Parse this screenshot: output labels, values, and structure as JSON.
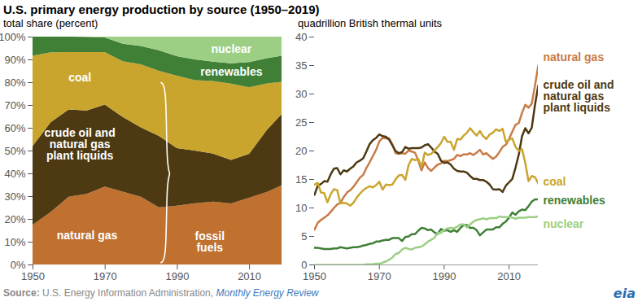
{
  "title": "U.S. primary energy production by source (1950–2019)",
  "source": {
    "prefix": "Source:",
    "text": "U.S. Energy Information Administration,",
    "link": "Monthly Energy Review"
  },
  "logo": "eia",
  "chart_data": [
    {
      "type": "area",
      "stacked": true,
      "subtitle": "total share (percent)",
      "x": [
        1950,
        1955,
        1960,
        1965,
        1970,
        1975,
        1980,
        1985,
        1990,
        1995,
        2000,
        2005,
        2010,
        2015,
        2019
      ],
      "xlim": [
        1950,
        2019
      ],
      "xticks": [
        1950,
        1970,
        1990,
        2010
      ],
      "ylim": [
        0,
        100
      ],
      "yticks": [
        {
          "value": 0,
          "label": "0%"
        },
        {
          "value": 10,
          "label": "10%"
        },
        {
          "value": 20,
          "label": "20%"
        },
        {
          "value": 30,
          "label": "30%"
        },
        {
          "value": 40,
          "label": "40%"
        },
        {
          "value": 50,
          "label": "50%"
        },
        {
          "value": 60,
          "label": "60%"
        },
        {
          "value": 70,
          "label": "70%"
        },
        {
          "value": 80,
          "label": "80%"
        },
        {
          "value": 90,
          "label": "90%"
        },
        {
          "value": 100,
          "label": "100%"
        }
      ],
      "grid": false,
      "series": [
        {
          "name": "natural gas",
          "color": "#c0702f",
          "values": [
            17.4,
            23.0,
            29.7,
            31.0,
            34.2,
            32.0,
            29.7,
            25.1,
            25.8,
            26.9,
            27.6,
            26.8,
            29.3,
            31.9,
            34.7
          ]
        },
        {
          "name": "crude oil and\nnatural gas\nplant liquids",
          "color": "#4d3a12",
          "values": [
            34.6,
            39.4,
            38.3,
            36.6,
            36.0,
            32.7,
            30.5,
            31.3,
            25.3,
            23.1,
            21.1,
            19.1,
            19.3,
            27.3,
            31.3
          ]
        },
        {
          "name": "coal",
          "color": "#c9a52d",
          "values": [
            39.6,
            30.7,
            25.2,
            25.6,
            23.0,
            24.5,
            27.7,
            28.6,
            31.8,
            30.9,
            31.8,
            33.5,
            29.2,
            20.3,
            14.2
          ]
        },
        {
          "name": "renewables",
          "color": "#3f7f36",
          "values": [
            8.4,
            6.9,
            6.8,
            6.7,
            6.4,
            7.7,
            8.0,
            9.0,
            8.5,
            9.1,
            8.5,
            8.9,
            11.0,
            11.0,
            11.4
          ]
        },
        {
          "name": "nuclear",
          "color": "#9ccf83",
          "values": [
            0,
            0,
            0,
            0.1,
            0.4,
            3.1,
            4.1,
            6.0,
            8.6,
            10.0,
            11.0,
            11.7,
            11.2,
            9.5,
            8.4
          ]
        }
      ],
      "annotations": [
        {
          "text": "fossil\nfuels"
        }
      ]
    },
    {
      "type": "line",
      "subtitle": "quadrillion British thermal units",
      "x": [
        1950,
        1951,
        1952,
        1953,
        1954,
        1955,
        1956,
        1957,
        1958,
        1959,
        1960,
        1961,
        1962,
        1963,
        1964,
        1965,
        1966,
        1967,
        1968,
        1969,
        1970,
        1971,
        1972,
        1973,
        1974,
        1975,
        1976,
        1977,
        1978,
        1979,
        1980,
        1981,
        1982,
        1983,
        1984,
        1985,
        1986,
        1987,
        1988,
        1989,
        1990,
        1991,
        1992,
        1993,
        1994,
        1995,
        1996,
        1997,
        1998,
        1999,
        2000,
        2001,
        2002,
        2003,
        2004,
        2005,
        2006,
        2007,
        2008,
        2009,
        2010,
        2011,
        2012,
        2013,
        2014,
        2015,
        2016,
        2017,
        2018,
        2019
      ],
      "xlim": [
        1950,
        2019
      ],
      "xticks": [
        1950,
        1970,
        1990,
        2010
      ],
      "ylim": [
        0,
        40
      ],
      "yticks": [
        0,
        5,
        10,
        15,
        20,
        25,
        30,
        35,
        40
      ],
      "grid": false,
      "series": [
        {
          "name": "natural gas",
          "color": "#c87b45",
          "values": [
            6.2,
            7.4,
            7.9,
            8.3,
            8.7,
            9.3,
            10.0,
            10.6,
            10.9,
            11.9,
            12.7,
            13.1,
            13.7,
            14.5,
            15.3,
            15.8,
            17.0,
            18.0,
            19.1,
            20.2,
            21.7,
            22.3,
            22.2,
            22.2,
            21.2,
            19.6,
            19.5,
            19.6,
            19.5,
            20.1,
            19.9,
            19.7,
            18.3,
            16.6,
            18.0,
            17.0,
            16.5,
            17.1,
            17.6,
            17.8,
            18.3,
            18.2,
            18.4,
            18.6,
            19.3,
            19.1,
            19.4,
            19.4,
            19.6,
            19.3,
            19.7,
            20.2,
            19.4,
            19.6,
            19.1,
            18.6,
            19.0,
            19.8,
            20.7,
            21.1,
            22.1,
            23.4,
            24.6,
            24.9,
            26.7,
            28.1,
            27.6,
            28.3,
            31.5,
            35.0
          ]
        },
        {
          "name": "crude oil and\nnatural gas\nplant liquids",
          "color": "#4d3a12",
          "values": [
            12.3,
            13.9,
            14.2,
            14.7,
            14.6,
            15.9,
            16.9,
            17.0,
            15.9,
            16.6,
            16.4,
            16.9,
            17.3,
            18.0,
            18.3,
            18.7,
            19.9,
            21.2,
            21.9,
            22.3,
            22.9,
            22.6,
            22.5,
            22.0,
            21.0,
            20.0,
            19.6,
            19.8,
            20.7,
            20.4,
            20.5,
            20.5,
            20.5,
            20.6,
            21.0,
            21.2,
            20.6,
            19.9,
            19.5,
            18.3,
            17.9,
            18.0,
            17.6,
            16.9,
            16.5,
            16.4,
            16.4,
            16.2,
            15.6,
            15.1,
            15.1,
            14.9,
            14.9,
            14.6,
            14.1,
            13.3,
            13.2,
            13.3,
            12.8,
            13.9,
            14.5,
            15.1,
            17.1,
            19.4,
            22.6,
            24.0,
            23.1,
            24.1,
            28.1,
            31.5
          ]
        },
        {
          "name": "coal",
          "color": "#c9a52d",
          "values": [
            14.1,
            14.4,
            12.7,
            12.6,
            11.0,
            12.4,
            13.3,
            13.1,
            10.8,
            10.9,
            10.8,
            10.4,
            10.9,
            11.8,
            12.5,
            13.1,
            13.5,
            13.8,
            13.6,
            14.0,
            14.6,
            13.2,
            14.1,
            14.0,
            14.1,
            15.0,
            15.7,
            15.8,
            14.9,
            17.5,
            18.6,
            18.4,
            18.6,
            17.2,
            19.7,
            19.3,
            19.5,
            20.1,
            20.7,
            21.4,
            22.5,
            21.6,
            21.6,
            20.2,
            22.1,
            22.0,
            22.7,
            23.2,
            24.0,
            23.3,
            22.7,
            23.5,
            22.6,
            22.1,
            22.9,
            23.2,
            23.8,
            23.5,
            23.9,
            21.6,
            22.0,
            22.2,
            20.7,
            20.0,
            20.3,
            17.9,
            14.7,
            15.6,
            15.4,
            14.3
          ]
        },
        {
          "name": "renewables",
          "color": "#3f7f36",
          "values": [
            3.0,
            3.0,
            2.9,
            2.8,
            2.8,
            2.8,
            2.9,
            2.9,
            3.1,
            3.0,
            2.9,
            3.0,
            3.1,
            3.1,
            3.2,
            3.4,
            3.5,
            3.7,
            3.8,
            4.1,
            4.1,
            4.3,
            4.4,
            4.4,
            4.7,
            4.7,
            4.7,
            4.2,
            4.9,
            5.0,
            5.4,
            5.4,
            6.0,
            6.5,
            6.4,
            6.1,
            6.2,
            5.7,
            5.4,
            6.3,
            6.0,
            6.1,
            5.8,
            6.1,
            5.8,
            6.5,
            7.0,
            7.0,
            6.5,
            6.5,
            6.1,
            5.2,
            5.7,
            6.2,
            6.2,
            6.2,
            6.6,
            6.6,
            7.2,
            7.6,
            8.3,
            9.2,
            8.8,
            9.4,
            9.7,
            9.6,
            10.3,
            11.1,
            11.5,
            11.5
          ]
        },
        {
          "name": "nuclear",
          "color": "#9ccf83",
          "values": [
            0,
            0,
            0,
            0,
            0,
            0,
            0,
            0,
            0,
            0,
            0,
            0,
            0,
            0,
            0,
            0,
            0.1,
            0.1,
            0.1,
            0.2,
            0.2,
            0.4,
            0.6,
            0.9,
            1.3,
            1.9,
            2.1,
            2.7,
            3.0,
            2.8,
            2.7,
            3.0,
            3.1,
            3.2,
            3.6,
            4.1,
            4.4,
            4.8,
            5.6,
            5.6,
            6.1,
            6.4,
            6.5,
            6.4,
            6.7,
            7.1,
            7.1,
            6.6,
            7.1,
            7.6,
            7.9,
            8.0,
            8.2,
            8.0,
            8.2,
            8.2,
            8.2,
            8.5,
            8.4,
            8.4,
            8.4,
            8.3,
            8.1,
            8.3,
            8.3,
            8.3,
            8.4,
            8.4,
            8.4,
            8.5
          ]
        }
      ]
    }
  ]
}
